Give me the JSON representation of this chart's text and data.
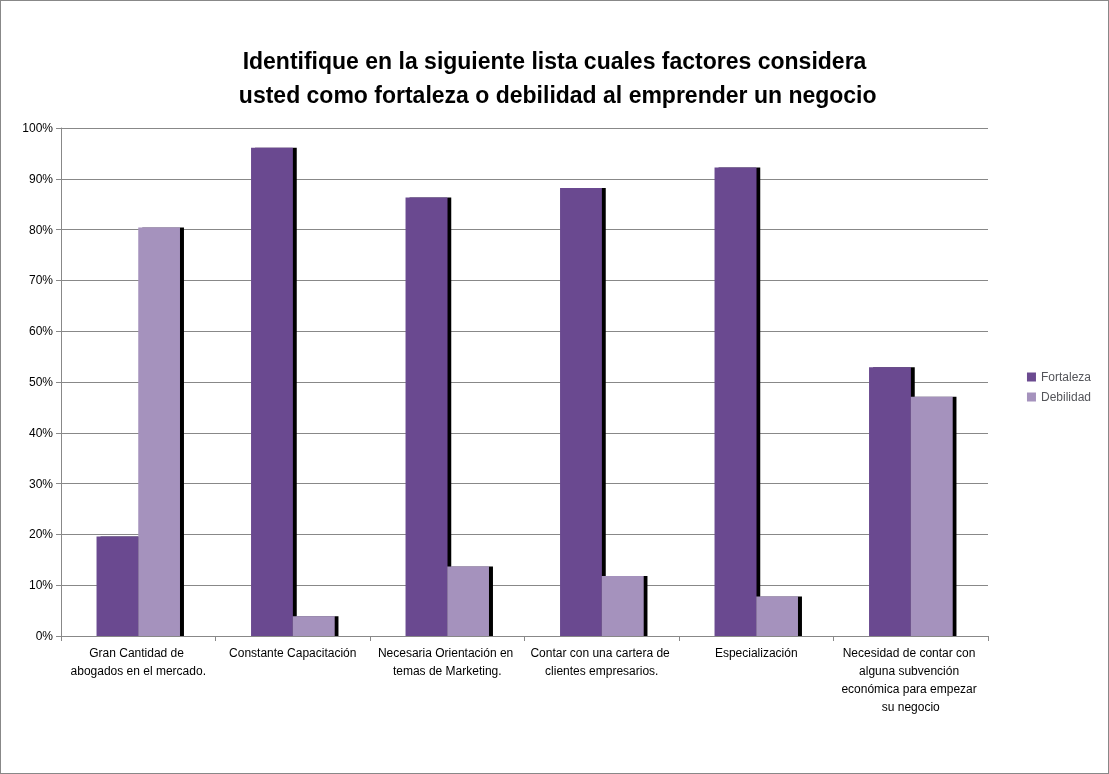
{
  "chart_data": {
    "type": "bar",
    "title": "Identifique en la siguiente lista cuales factores considera usted como fortaleza o debilidad al emprender un negocio",
    "categories": [
      "Gran Cantidad de abogados en el mercado.",
      "Constante Capacitación",
      "Necesaria Orientación en temas de Marketing.",
      "Contar con una cartera de clientes empresarios.",
      "Especialización",
      "Necesidad de contar con alguna subvención económica para empezar su negocio"
    ],
    "series": [
      {
        "name": "Fortaleza",
        "color": "#6b4a90",
        "values": [
          19.6,
          96.1,
          86.3,
          88.2,
          92.2,
          52.9
        ]
      },
      {
        "name": "Debilidad",
        "color": "#a592bd",
        "values": [
          80.4,
          3.9,
          13.7,
          11.8,
          7.8,
          47.1
        ]
      }
    ],
    "ylim": [
      0,
      100
    ],
    "yticks": [
      {
        "value": 0,
        "label": "0%"
      },
      {
        "value": 10,
        "label": "10%"
      },
      {
        "value": 20,
        "label": "20%"
      },
      {
        "value": 30,
        "label": "30%"
      },
      {
        "value": 40,
        "label": "40%"
      },
      {
        "value": 50,
        "label": "50%"
      },
      {
        "value": 60,
        "label": "60%"
      },
      {
        "value": 70,
        "label": "70%"
      },
      {
        "value": 80,
        "label": "80%"
      },
      {
        "value": 90,
        "label": "90%"
      },
      {
        "value": 100,
        "label": "100%"
      }
    ],
    "grid": "y",
    "legend": "right"
  }
}
